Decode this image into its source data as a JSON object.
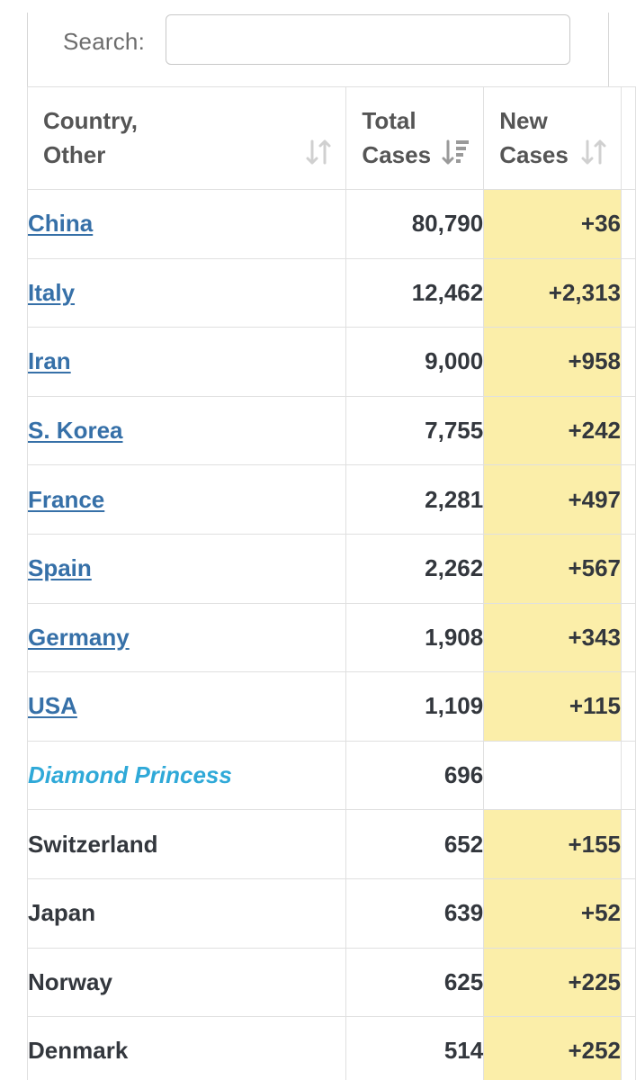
{
  "search": {
    "label": "Search:",
    "value": "",
    "placeholder": ""
  },
  "table": {
    "headers": {
      "country_line1": "Country,",
      "country_line2": "Other",
      "total_line1": "Total",
      "total_line2": "Cases",
      "new_line1": "New",
      "new_line2": "Cases"
    },
    "rows": [
      {
        "country": "China",
        "total": "80,790",
        "new": "+36",
        "link": true
      },
      {
        "country": "Italy",
        "total": "12,462",
        "new": "+2,313",
        "link": true
      },
      {
        "country": "Iran",
        "total": "9,000",
        "new": "+958",
        "link": true
      },
      {
        "country": "S. Korea",
        "total": "7,755",
        "new": "+242",
        "link": true
      },
      {
        "country": "France",
        "total": "2,281",
        "new": "+497",
        "link": true
      },
      {
        "country": "Spain",
        "total": "2,262",
        "new": "+567",
        "link": true
      },
      {
        "country": "Germany",
        "total": "1,908",
        "new": "+343",
        "link": true
      },
      {
        "country": "USA",
        "total": "1,109",
        "new": "+115",
        "link": true
      },
      {
        "country": "Diamond Princess",
        "total": "696",
        "new": "",
        "link": false,
        "cruise": true
      },
      {
        "country": "Switzerland",
        "total": "652",
        "new": "+155",
        "link": false
      },
      {
        "country": "Japan",
        "total": "639",
        "new": "+52",
        "link": false
      },
      {
        "country": "Norway",
        "total": "625",
        "new": "+225",
        "link": false
      },
      {
        "country": "Denmark",
        "total": "514",
        "new": "+252",
        "link": false
      }
    ]
  },
  "colors": {
    "link": "#3670a8",
    "cruise": "#2fa9d8",
    "new_cases_highlight": "#fbeea9",
    "text": "#33373d",
    "header_text": "#555555"
  },
  "icons": {
    "sort_country": "sort-icon",
    "sort_total": "sort-desc-icon",
    "sort_new": "sort-icon"
  }
}
